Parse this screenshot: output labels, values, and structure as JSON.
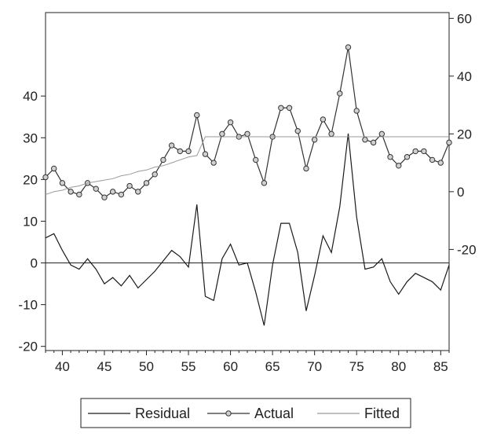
{
  "chart_data": {
    "type": "line",
    "x": [
      38,
      39,
      40,
      41,
      42,
      43,
      44,
      45,
      46,
      47,
      48,
      49,
      50,
      51,
      52,
      53,
      54,
      55,
      56,
      57,
      58,
      59,
      60,
      61,
      62,
      63,
      64,
      65,
      66,
      67,
      68,
      69,
      70,
      71,
      72,
      73,
      74,
      75,
      76,
      77,
      78,
      79,
      80,
      81,
      82,
      83,
      84,
      85,
      86
    ],
    "xlim": [
      38,
      86
    ],
    "x_ticks": [
      40,
      45,
      50,
      55,
      60,
      65,
      70,
      75,
      80,
      85
    ],
    "left_axis": {
      "ylim": [
        -21,
        60
      ],
      "ticks": [
        -20,
        -10,
        0,
        10,
        20,
        30,
        40
      ]
    },
    "right_axis": {
      "ylim": [
        -55,
        62
      ],
      "ticks": [
        -20,
        0,
        20,
        40,
        60
      ]
    },
    "zero_line": 0,
    "series": [
      {
        "name": "Residual",
        "axis": "left",
        "style": "line",
        "color": "#1a1a1a",
        "values": [
          6,
          7,
          3,
          -0.5,
          -1.5,
          1,
          -1.5,
          -5,
          -3.5,
          -5.5,
          -3,
          -6,
          -4,
          -2,
          0.5,
          3,
          1.5,
          -1,
          14,
          -8,
          -9,
          1,
          4.5,
          -0.5,
          0,
          -7,
          -15,
          -0.5,
          9.5,
          9.5,
          2.5,
          -11.5,
          -3,
          6.5,
          2.5,
          13.5,
          31,
          11,
          -1.5,
          -1,
          1,
          -4.5,
          -7.5,
          -4.5,
          -2.5,
          -3.5,
          -4.5,
          -6.5,
          -0.5
        ]
      },
      {
        "name": "Actual",
        "axis": "right",
        "style": "line-marker",
        "color": "#333333",
        "values": [
          5,
          8,
          3,
          0,
          -1,
          3,
          1,
          -2,
          0,
          -1,
          2,
          0,
          3,
          6,
          11,
          16,
          14,
          14,
          26.5,
          13,
          10,
          20,
          24,
          19,
          20,
          11,
          3,
          19,
          29,
          29,
          21,
          8,
          18,
          25,
          20,
          34,
          50,
          28,
          18,
          17,
          20,
          12,
          9,
          12,
          14,
          14,
          11,
          10,
          17
        ]
      },
      {
        "name": "Fitted",
        "axis": "right",
        "style": "line",
        "color": "#9a9a9a",
        "values": [
          -1,
          0,
          0.5,
          1.5,
          2,
          3,
          3.5,
          4,
          4.5,
          5.5,
          6,
          7,
          7.5,
          8.5,
          9,
          10,
          11,
          12,
          12.5,
          19,
          19,
          19,
          19,
          19,
          19,
          19,
          19,
          19,
          19,
          19,
          19,
          19,
          19,
          19,
          19,
          19,
          19,
          19,
          19,
          19,
          19,
          19,
          19,
          19,
          19,
          19,
          19,
          19,
          19
        ]
      }
    ]
  }
}
